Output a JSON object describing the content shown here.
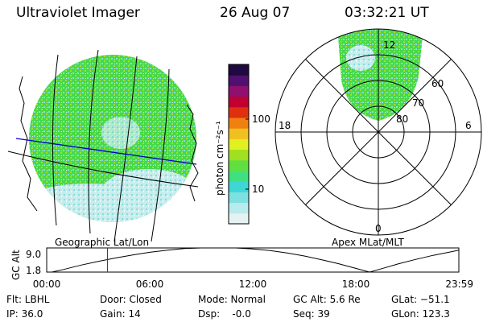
{
  "header": {
    "title": "Ultraviolet Imager",
    "date": "26 Aug 07",
    "time": "03:32:21 UT"
  },
  "geo_panel": {
    "label": "Geographic Lat/Lon"
  },
  "polar_panel": {
    "label": "Apex MLat/MLT",
    "mlt_labels": [
      "12",
      "18",
      "6",
      "0"
    ],
    "mlat_labels": [
      "60",
      "70",
      "80"
    ]
  },
  "colorbar": {
    "unit_label": "photon cm⁻²s⁻¹",
    "ticks": [
      "100",
      "10"
    ],
    "colors": [
      "#e6f2f2",
      "#b8ecec",
      "#7fe0e0",
      "#3fd6d6",
      "#40e080",
      "#5fe040",
      "#9fe020",
      "#e0f020",
      "#f0c020",
      "#f08010",
      "#e03010",
      "#c00030",
      "#901070",
      "#501070",
      "#200840"
    ]
  },
  "chart_data": {
    "type": "line",
    "title": "GC Alt",
    "ylabel": "GC Alt",
    "xlabel": "",
    "x_ticks": [
      "00:00",
      "06:00",
      "12:00",
      "18:00",
      "23:59"
    ],
    "y_ticks": [
      "9.0",
      "1.8"
    ],
    "ylim": [
      1.8,
      9.0
    ],
    "xlim_hours": [
      0,
      24
    ],
    "series": [
      {
        "name": "GC Alt (Re)",
        "x": [
          0.3,
          1.0,
          2.0,
          3.0,
          4.0,
          5.0,
          6.0,
          7.0,
          8.0,
          9.0,
          10.0,
          11.0,
          12.0,
          13.0,
          14.0,
          15.0,
          16.0,
          17.0,
          18.0,
          18.8,
          19.5,
          20.5,
          21.5,
          22.5,
          23.5,
          23.98
        ],
        "y": [
          1.8,
          2.6,
          3.9,
          5.0,
          6.0,
          6.9,
          7.7,
          8.3,
          8.8,
          9.05,
          9.1,
          9.0,
          8.7,
          8.2,
          7.5,
          6.6,
          5.5,
          4.3,
          2.9,
          1.8,
          2.8,
          4.3,
          5.6,
          6.8,
          7.8,
          8.3
        ]
      }
    ],
    "marker_time_hours": 3.54
  },
  "footer": {
    "flt": "Flt: LBHL",
    "ip": "IP: 36.0",
    "door": "Door: Closed",
    "gain": "Gain: 14",
    "mode": "Mode: Normal",
    "dsp": "Dsp:    -0.0",
    "gc_alt": "GC Alt: 5.6 Re",
    "seq": "Seq: 39",
    "glat": "GLat: −51.1",
    "glon": "GLon: 123.3"
  }
}
